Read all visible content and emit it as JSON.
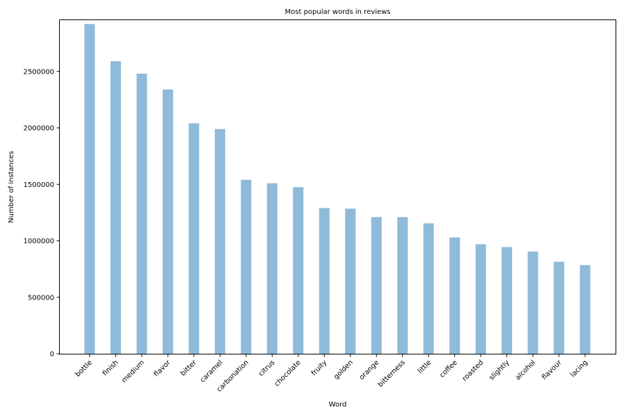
{
  "chart_data": {
    "type": "bar",
    "title": "Most popular words in reviews",
    "xlabel": "Word",
    "ylabel": "Number of instances",
    "categories": [
      "bottle",
      "finish",
      "medium",
      "flavor",
      "bitter",
      "caramel",
      "carbonation",
      "citrus",
      "chocolate",
      "fruity",
      "golden",
      "orange",
      "bitterness",
      "little",
      "coffee",
      "roasted",
      "slightly",
      "alcohol",
      "flavour",
      "lacing"
    ],
    "values": [
      2920000,
      2590000,
      2480000,
      2340000,
      2040000,
      1990000,
      1540000,
      1510000,
      1475000,
      1290000,
      1285000,
      1210000,
      1210000,
      1155000,
      1030000,
      970000,
      945000,
      905000,
      815000,
      785000
    ],
    "ylim": [
      0,
      2960000
    ],
    "yticks": [
      0,
      500000,
      1000000,
      1500000,
      2000000,
      2500000
    ],
    "ytick_labels": [
      "0",
      "500000",
      "1000000",
      "1500000",
      "2000000",
      "2500000"
    ],
    "grid": false,
    "legend": "none",
    "bar_color": "#8fbad9"
  }
}
